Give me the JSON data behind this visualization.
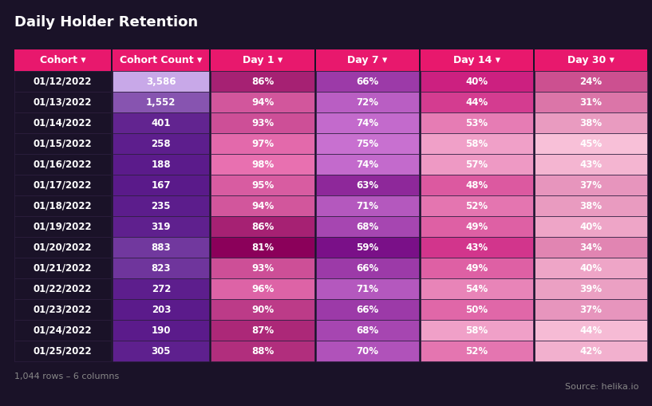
{
  "title": "Daily Holder Retention",
  "subtitle": "1,044 rows – 6 columns",
  "source": "Source: helika.io",
  "bg_color": "#1a1228",
  "header_labels": [
    "Cohort",
    "Cohort Count",
    "Day 1",
    "Day 7",
    "Day 14",
    "Day 30"
  ],
  "rows": [
    [
      "01/12/2022",
      "3,586",
      "86%",
      "66%",
      "40%",
      "24%"
    ],
    [
      "01/13/2022",
      "1,552",
      "94%",
      "72%",
      "44%",
      "31%"
    ],
    [
      "01/14/2022",
      "401",
      "93%",
      "74%",
      "53%",
      "38%"
    ],
    [
      "01/15/2022",
      "258",
      "97%",
      "75%",
      "58%",
      "45%"
    ],
    [
      "01/16/2022",
      "188",
      "98%",
      "74%",
      "57%",
      "43%"
    ],
    [
      "01/17/2022",
      "167",
      "95%",
      "63%",
      "48%",
      "37%"
    ],
    [
      "01/18/2022",
      "235",
      "94%",
      "71%",
      "52%",
      "38%"
    ],
    [
      "01/19/2022",
      "319",
      "86%",
      "68%",
      "49%",
      "40%"
    ],
    [
      "01/20/2022",
      "883",
      "81%",
      "59%",
      "43%",
      "34%"
    ],
    [
      "01/21/2022",
      "823",
      "93%",
      "66%",
      "49%",
      "40%"
    ],
    [
      "01/22/2022",
      "272",
      "96%",
      "71%",
      "54%",
      "39%"
    ],
    [
      "01/23/2022",
      "203",
      "90%",
      "66%",
      "50%",
      "37%"
    ],
    [
      "01/24/2022",
      "190",
      "87%",
      "68%",
      "58%",
      "44%"
    ],
    [
      "01/25/2022",
      "305",
      "88%",
      "70%",
      "52%",
      "42%"
    ]
  ],
  "count_values": [
    3586,
    1552,
    401,
    258,
    188,
    167,
    235,
    319,
    883,
    823,
    272,
    203,
    190,
    305
  ],
  "day1_values": [
    86,
    94,
    93,
    97,
    98,
    95,
    94,
    86,
    81,
    93,
    96,
    90,
    87,
    88
  ],
  "day7_values": [
    66,
    72,
    74,
    75,
    74,
    63,
    71,
    68,
    59,
    66,
    71,
    66,
    68,
    70
  ],
  "day14_values": [
    40,
    44,
    53,
    58,
    57,
    48,
    52,
    49,
    43,
    49,
    54,
    50,
    58,
    52
  ],
  "day30_values": [
    24,
    31,
    38,
    45,
    43,
    37,
    38,
    40,
    34,
    40,
    39,
    37,
    44,
    42
  ],
  "header_bg": [
    "#e8186d",
    "#e8186d",
    "#e8186d",
    "#e8186d",
    "#e8186d",
    "#e8186d"
  ],
  "cohort_col_bg": "#1a1228",
  "count_dark": "#5a1a8a",
  "count_light": "#c8a8e8",
  "day1_dark": "#8b005a",
  "day1_light": "#e870b0",
  "day7_dark": "#7a1088",
  "day7_light": "#c870d0",
  "day14_dark": "#cc2080",
  "day14_light": "#f0a0c8",
  "day30_dark": "#cc5090",
  "day30_light": "#f8c0d8",
  "cell_border": "#2d1f40",
  "title_fontsize": 13,
  "header_fontsize": 9,
  "cell_fontsize": 8.5
}
